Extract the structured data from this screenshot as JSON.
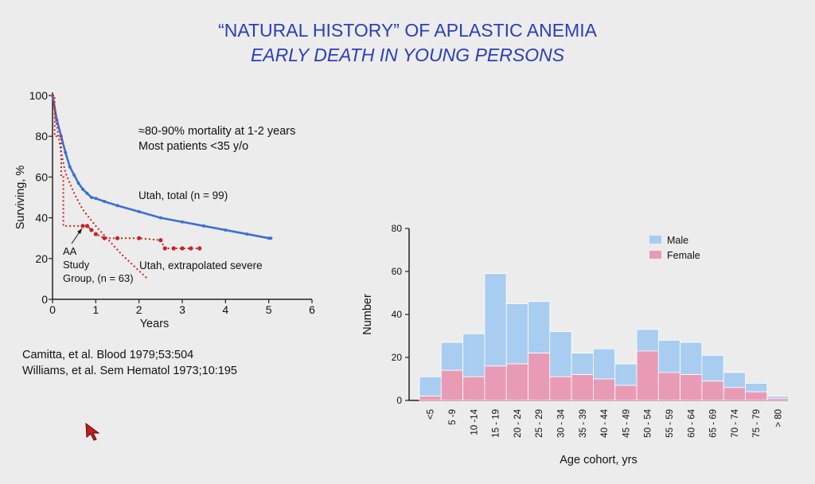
{
  "slide": {
    "title_line1": "“NATURAL HISTORY” OF APLASTIC ANEMIA",
    "title_line2": "EARLY DEATH IN YOUNG PERSONS",
    "ref1": "Camitta, et al. Blood 1979;53:504",
    "ref2": "Williams, et al. Sem Hematol 1973;10:195",
    "title_color": "#2a3fb8"
  },
  "chart_data": [
    {
      "type": "line",
      "xlabel": "Years",
      "ylabel": "Surviving, %",
      "xlim": [
        0,
        6
      ],
      "ylim": [
        0,
        100
      ],
      "xticks": [
        0,
        1,
        2,
        3,
        4,
        5,
        6
      ],
      "yticks": [
        0,
        20,
        40,
        60,
        80,
        100
      ],
      "annotations": {
        "note_line1": "≈80-90% mortality at 1-2 years",
        "note_line2": "Most patients <35 y/o",
        "utah_total": "Utah, total (n = 99)",
        "utah_severe": "Utah, extrapolated severe",
        "aa_line1": "AA",
        "aa_line2": "Study",
        "aa_line3": "Group, (n = 63)"
      },
      "series": [
        {
          "name": "Utah, total (n = 99)",
          "color": "#3c6fd6",
          "x": [
            0,
            0.1,
            0.2,
            0.3,
            0.4,
            0.5,
            0.6,
            0.7,
            0.8,
            0.9,
            1.0,
            1.2,
            1.5,
            2.0,
            2.5,
            3.0,
            3.5,
            4.0,
            4.5,
            5.0,
            5.05
          ],
          "y": [
            100,
            88,
            80,
            72,
            65,
            61,
            57,
            54,
            52,
            50,
            49.5,
            48,
            46,
            43,
            40,
            38,
            36,
            34,
            32,
            30,
            30
          ]
        },
        {
          "name": "Utah, extrapolated severe",
          "color": "#cc2222",
          "x": [
            0,
            0.1,
            0.2,
            0.3,
            0.5,
            0.7,
            1.0,
            1.3,
            1.6,
            2.0,
            2.2
          ],
          "y": [
            100,
            85,
            72,
            62,
            52,
            44,
            36,
            29,
            22,
            14,
            10
          ]
        },
        {
          "name": "AA Study Group, (n = 63)",
          "color": "#cc2222",
          "x": [
            0,
            0.05,
            0.05,
            0.2,
            0.2,
            0.25,
            0.25,
            0.4,
            0.55,
            0.7,
            0.8,
            0.9,
            1.0,
            1.2,
            1.5,
            2.0,
            2.5,
            2.6,
            2.8,
            3.0,
            3.2,
            3.4
          ],
          "y": [
            100,
            100,
            80,
            80,
            60,
            60,
            36,
            36,
            36,
            36,
            36,
            34,
            32,
            30,
            30,
            30,
            29,
            25,
            25,
            25,
            25,
            25
          ]
        }
      ]
    },
    {
      "type": "bar",
      "stacked": true,
      "xlabel": "Age cohort, yrs",
      "ylabel": "Number",
      "ylim": [
        0,
        80
      ],
      "yticks": [
        0,
        20,
        40,
        60,
        80
      ],
      "legend_position": "top-right",
      "categories": [
        "<5",
        "5 -9",
        "10 -14",
        "15 - 19",
        "20 - 24",
        "25 - 29",
        "30 - 34",
        "35 - 39",
        "40 - 44",
        "45 - 49",
        "50 - 54",
        "55 - 59",
        "60 - 64",
        "65 - 69",
        "70 - 74",
        "75 - 79",
        "> 80"
      ],
      "series": [
        {
          "name": "Female",
          "color": "#e99bb6",
          "values": [
            2,
            14,
            11,
            16,
            17,
            22,
            11,
            12,
            10,
            7,
            23,
            13,
            12,
            9,
            6,
            4,
            1
          ]
        },
        {
          "name": "Male",
          "color": "#a8cdf0",
          "values": [
            9,
            13,
            20,
            43,
            28,
            24,
            21,
            10,
            14,
            10,
            10,
            15,
            15,
            12,
            7,
            4,
            1
          ]
        }
      ]
    }
  ]
}
